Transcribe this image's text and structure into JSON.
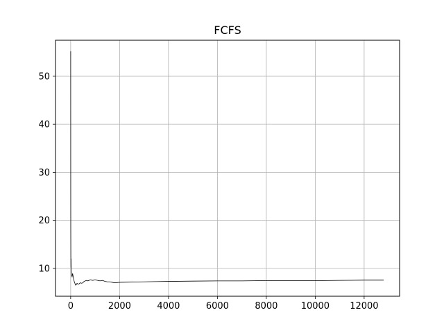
{
  "chart_data": {
    "type": "line",
    "title": "FCFS",
    "xlabel": "",
    "ylabel": "",
    "xlim": [
      -620,
      13450
    ],
    "ylim": [
      4.2,
      57.5
    ],
    "xticks": [
      0,
      2000,
      4000,
      6000,
      8000,
      10000,
      12000
    ],
    "yticks": [
      10,
      20,
      30,
      40,
      50
    ],
    "grid": true,
    "line_color": "#000000",
    "grid_color": "#b0b0b0",
    "series": [
      {
        "x": [
          1,
          3,
          5,
          8,
          10,
          12,
          15,
          20,
          25,
          30,
          40,
          50,
          60,
          70,
          80,
          100,
          120,
          150,
          180,
          200,
          230,
          260,
          300,
          350,
          400,
          450,
          500,
          550,
          600,
          650,
          700,
          800,
          900,
          1000,
          1100,
          1200,
          1300,
          1400,
          1500,
          1600,
          1700,
          1800,
          2000,
          2500,
          3000,
          3500,
          4000,
          5000,
          6000,
          7000,
          8000,
          9000,
          10000,
          11000,
          12000,
          12800
        ],
        "y": [
          55.2,
          30,
          18,
          12.5,
          11,
          10.2,
          12,
          9.8,
          9.4,
          9.0,
          8.6,
          8.4,
          8.2,
          8.7,
          8.9,
          8.4,
          7.8,
          7.2,
          6.8,
          6.5,
          6.6,
          6.9,
          6.7,
          6.8,
          7.0,
          6.9,
          7.0,
          7.3,
          7.4,
          7.5,
          7.4,
          7.6,
          7.5,
          7.6,
          7.5,
          7.4,
          7.5,
          7.3,
          7.2,
          7.2,
          7.1,
          7.0,
          7.1,
          7.15,
          7.2,
          7.25,
          7.3,
          7.35,
          7.4,
          7.4,
          7.45,
          7.45,
          7.45,
          7.5,
          7.55,
          7.55
        ]
      }
    ]
  }
}
